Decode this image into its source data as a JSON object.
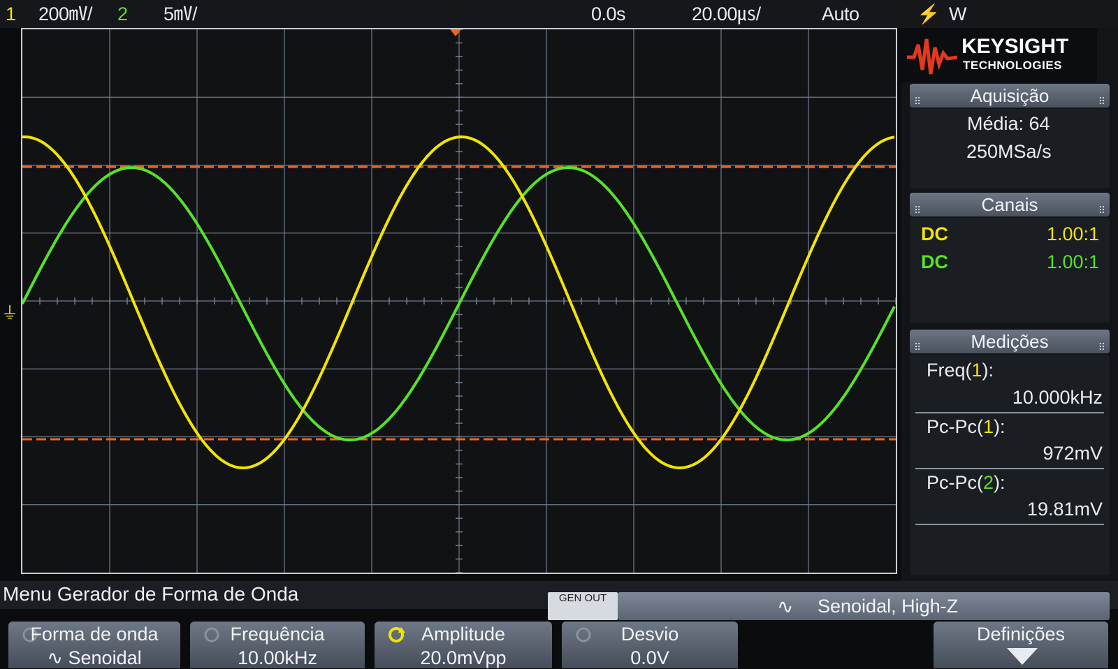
{
  "header": {
    "ch1_number": "1",
    "ch1_scale": "200㎷/",
    "ch2_number": "2",
    "ch2_scale": "5㎷/",
    "delay": "0.0s",
    "timebase": "20.00㎲/",
    "trigger_mode": "Auto",
    "trigger_source": "W"
  },
  "brand": {
    "name": "KEYSIGHT",
    "sub": "TECHNOLOGIES"
  },
  "acquisition": {
    "title": "Aquisição",
    "mode": "Média: 64",
    "rate": "250MSa/s"
  },
  "channels": {
    "title": "Canais",
    "items": [
      {
        "coupling": "DC",
        "probe": "1.00:1"
      },
      {
        "coupling": "DC",
        "probe": "1.00:1"
      }
    ]
  },
  "measurements": {
    "title": "Medições",
    "items": [
      {
        "label": "Freq(",
        "ch": "1",
        "suffix": "):",
        "value": "10.000kHz"
      },
      {
        "label": "Pc-Pc(",
        "ch": "1",
        "suffix": "):",
        "value": "972mV"
      },
      {
        "label": "Pc-Pc(",
        "ch": "2",
        "suffix": "):",
        "value": "19.81mV"
      }
    ]
  },
  "menu": {
    "title": "Menu Gerador de Forma de Onda",
    "gen_out": "GEN OUT",
    "waveform_status": "Senoidal, High-Z"
  },
  "softkeys": [
    {
      "label": "Forma de onda",
      "value": "∿ Senoidal"
    },
    {
      "label": "Frequência",
      "value": "10.00kHz"
    },
    {
      "label": "Amplitude",
      "value": "20.0mVpp"
    },
    {
      "label": "Desvio",
      "value": "0.0V"
    },
    {
      "label": "Definições",
      "value": ""
    }
  ],
  "colors": {
    "ch1": "#f2e400",
    "ch2": "#56e22a",
    "cursor": "#f0641e",
    "grid": "#6f7d8e"
  },
  "waveform_display": {
    "ch1": {
      "frequency_khz": 10.0,
      "peak_to_peak_mv": 972
    },
    "ch2": {
      "frequency_khz": 10.0,
      "peak_to_peak_mv": 19.81
    },
    "time_per_div_us": 20.0,
    "divisions_x": 10,
    "divisions_y": 8
  }
}
